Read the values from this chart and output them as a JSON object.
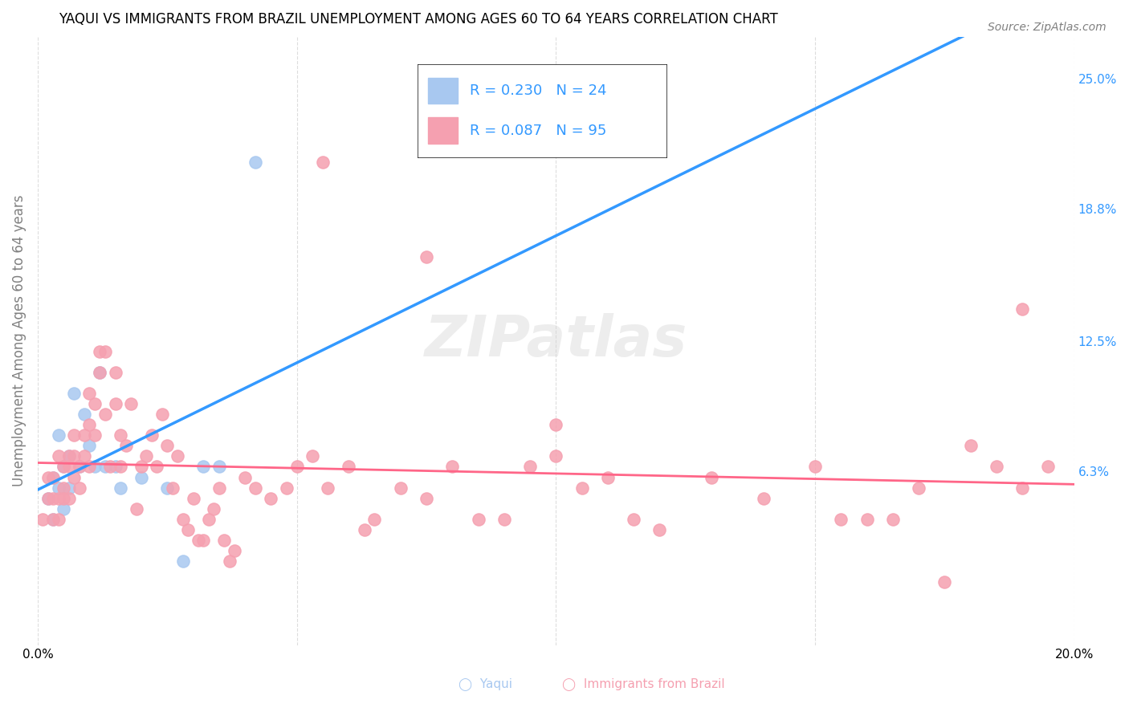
{
  "title": "YAQUI VS IMMIGRANTS FROM BRAZIL UNEMPLOYMENT AMONG AGES 60 TO 64 YEARS CORRELATION CHART",
  "source": "Source: ZipAtlas.com",
  "xlabel": "",
  "ylabel": "Unemployment Among Ages 60 to 64 years",
  "xlim": [
    0.0,
    0.2
  ],
  "ylim": [
    -0.02,
    0.27
  ],
  "xticks": [
    0.0,
    0.05,
    0.1,
    0.15,
    0.2
  ],
  "xticklabels": [
    "0.0%",
    "",
    "",
    "",
    "20.0%"
  ],
  "right_yticks": [
    0.0,
    0.063,
    0.125,
    0.188,
    0.25
  ],
  "right_yticklabels": [
    "",
    "6.3%",
    "12.5%",
    "18.8%",
    "25.0%"
  ],
  "background_color": "#ffffff",
  "grid_color": "#dddddd",
  "watermark": "ZIPatlas",
  "yaqui_color": "#a8c8f0",
  "brazil_color": "#f5a0b0",
  "yaqui_line_color": "#3399ff",
  "brazil_line_color": "#ff6688",
  "yaqui_R": 0.23,
  "yaqui_N": 24,
  "brazil_R": 0.087,
  "brazil_N": 95,
  "legend_R_color": "#3399ff",
  "legend_N_color": "#ff3366",
  "yaqui_x": [
    0.002,
    0.003,
    0.003,
    0.004,
    0.004,
    0.005,
    0.005,
    0.006,
    0.006,
    0.007,
    0.008,
    0.009,
    0.01,
    0.011,
    0.012,
    0.013,
    0.015,
    0.016,
    0.02,
    0.025,
    0.028,
    0.032,
    0.035,
    0.042
  ],
  "yaqui_y": [
    0.05,
    0.06,
    0.04,
    0.055,
    0.08,
    0.065,
    0.045,
    0.07,
    0.055,
    0.1,
    0.065,
    0.09,
    0.075,
    0.065,
    0.11,
    0.065,
    0.065,
    0.055,
    0.06,
    0.055,
    0.02,
    0.065,
    0.065,
    0.21
  ],
  "brazil_x": [
    0.001,
    0.002,
    0.002,
    0.003,
    0.003,
    0.003,
    0.004,
    0.004,
    0.004,
    0.005,
    0.005,
    0.005,
    0.006,
    0.006,
    0.006,
    0.007,
    0.007,
    0.007,
    0.008,
    0.008,
    0.009,
    0.009,
    0.01,
    0.01,
    0.01,
    0.011,
    0.011,
    0.012,
    0.012,
    0.013,
    0.013,
    0.014,
    0.015,
    0.015,
    0.016,
    0.016,
    0.017,
    0.018,
    0.019,
    0.02,
    0.021,
    0.022,
    0.023,
    0.024,
    0.025,
    0.026,
    0.027,
    0.028,
    0.029,
    0.03,
    0.031,
    0.032,
    0.033,
    0.034,
    0.035,
    0.036,
    0.037,
    0.038,
    0.04,
    0.042,
    0.045,
    0.048,
    0.05,
    0.053,
    0.056,
    0.06,
    0.063,
    0.065,
    0.07,
    0.075,
    0.08,
    0.085,
    0.09,
    0.095,
    0.1,
    0.105,
    0.11,
    0.115,
    0.12,
    0.13,
    0.14,
    0.15,
    0.155,
    0.16,
    0.165,
    0.17,
    0.175,
    0.18,
    0.185,
    0.19,
    0.195,
    0.1,
    0.055,
    0.075,
    0.19
  ],
  "brazil_y": [
    0.04,
    0.05,
    0.06,
    0.04,
    0.06,
    0.05,
    0.05,
    0.07,
    0.04,
    0.065,
    0.055,
    0.05,
    0.07,
    0.065,
    0.05,
    0.08,
    0.07,
    0.06,
    0.065,
    0.055,
    0.08,
    0.07,
    0.1,
    0.085,
    0.065,
    0.095,
    0.08,
    0.12,
    0.11,
    0.12,
    0.09,
    0.065,
    0.11,
    0.095,
    0.08,
    0.065,
    0.075,
    0.095,
    0.045,
    0.065,
    0.07,
    0.08,
    0.065,
    0.09,
    0.075,
    0.055,
    0.07,
    0.04,
    0.035,
    0.05,
    0.03,
    0.03,
    0.04,
    0.045,
    0.055,
    0.03,
    0.02,
    0.025,
    0.06,
    0.055,
    0.05,
    0.055,
    0.065,
    0.07,
    0.055,
    0.065,
    0.035,
    0.04,
    0.055,
    0.05,
    0.065,
    0.04,
    0.04,
    0.065,
    0.07,
    0.055,
    0.06,
    0.04,
    0.035,
    0.06,
    0.05,
    0.065,
    0.04,
    0.04,
    0.04,
    0.055,
    0.01,
    0.075,
    0.065,
    0.055,
    0.065,
    0.085,
    0.21,
    0.165,
    0.14
  ]
}
